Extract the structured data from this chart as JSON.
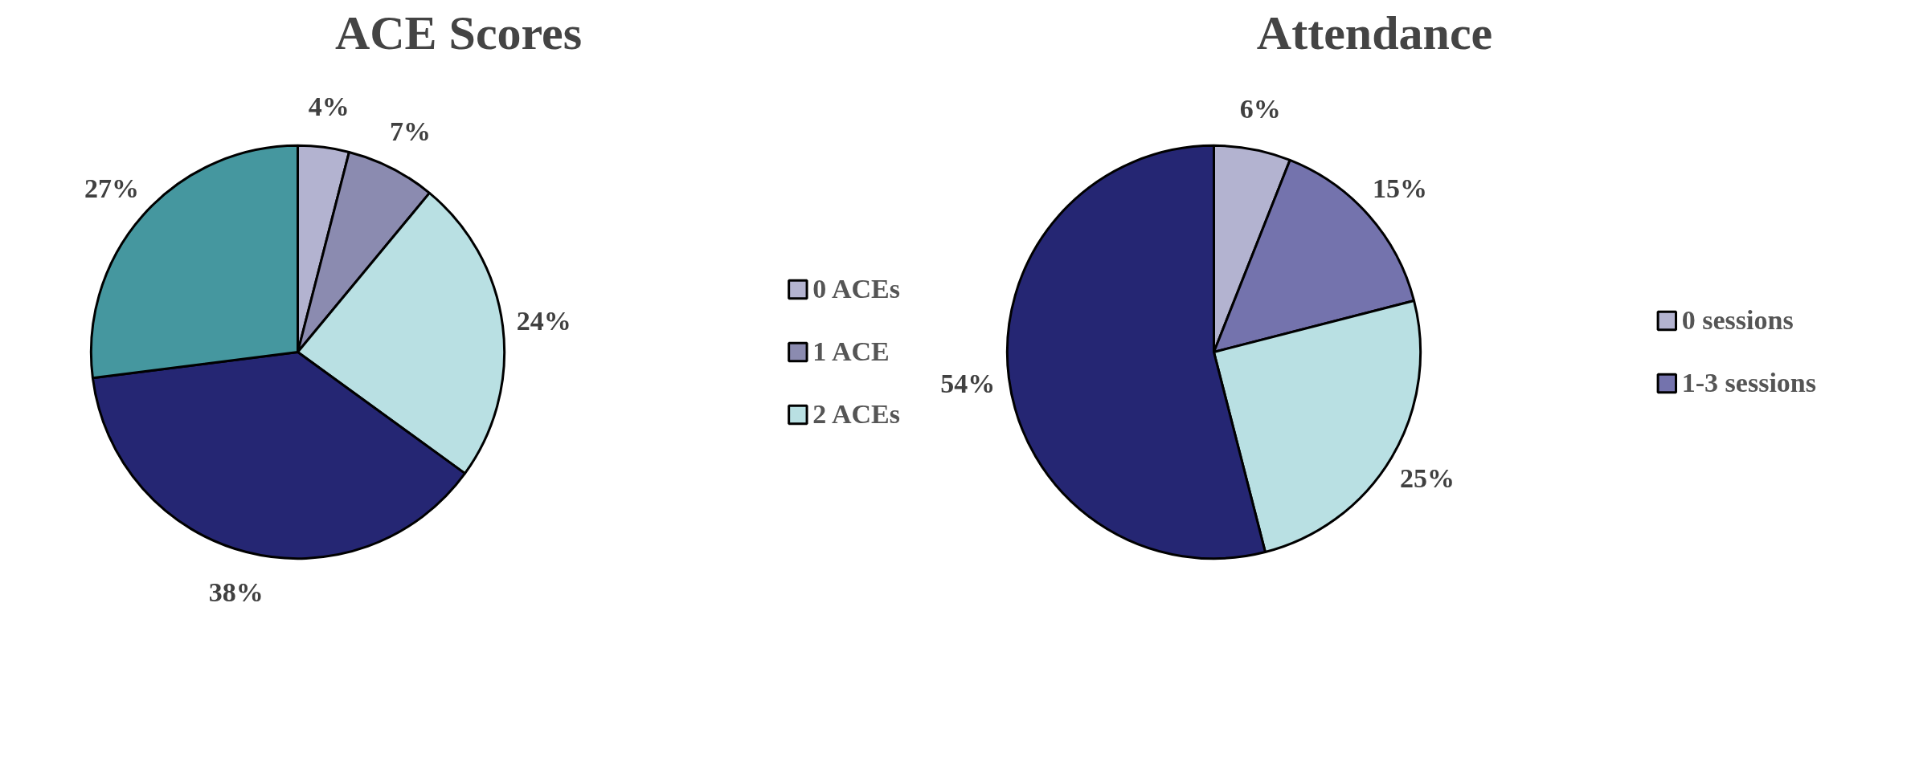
{
  "chart_data": [
    {
      "type": "pie",
      "title": "ACE Scores",
      "categories": [
        "0 ACEs",
        "1 ACE",
        "2 ACEs",
        null,
        null
      ],
      "values": [
        4,
        7,
        24,
        38,
        27
      ],
      "value_labels": [
        "4%",
        "7%",
        "24%",
        "38%",
        "27%"
      ],
      "colors": [
        "#b3b3d0",
        "#8b8bb0",
        "#b9e0e3",
        "#252673",
        "#45979f"
      ],
      "legend": "right"
    },
    {
      "type": "pie",
      "title": "Attendance",
      "categories": [
        "0 sessions",
        "1-3 sessions",
        null,
        null
      ],
      "values": [
        6,
        15,
        25,
        54
      ],
      "value_labels": [
        "6%",
        "15%",
        "25%",
        "54%"
      ],
      "colors": [
        "#b3b3d0",
        "#7473ad",
        "#b9e0e3",
        "#252673"
      ],
      "legend": "right"
    }
  ]
}
